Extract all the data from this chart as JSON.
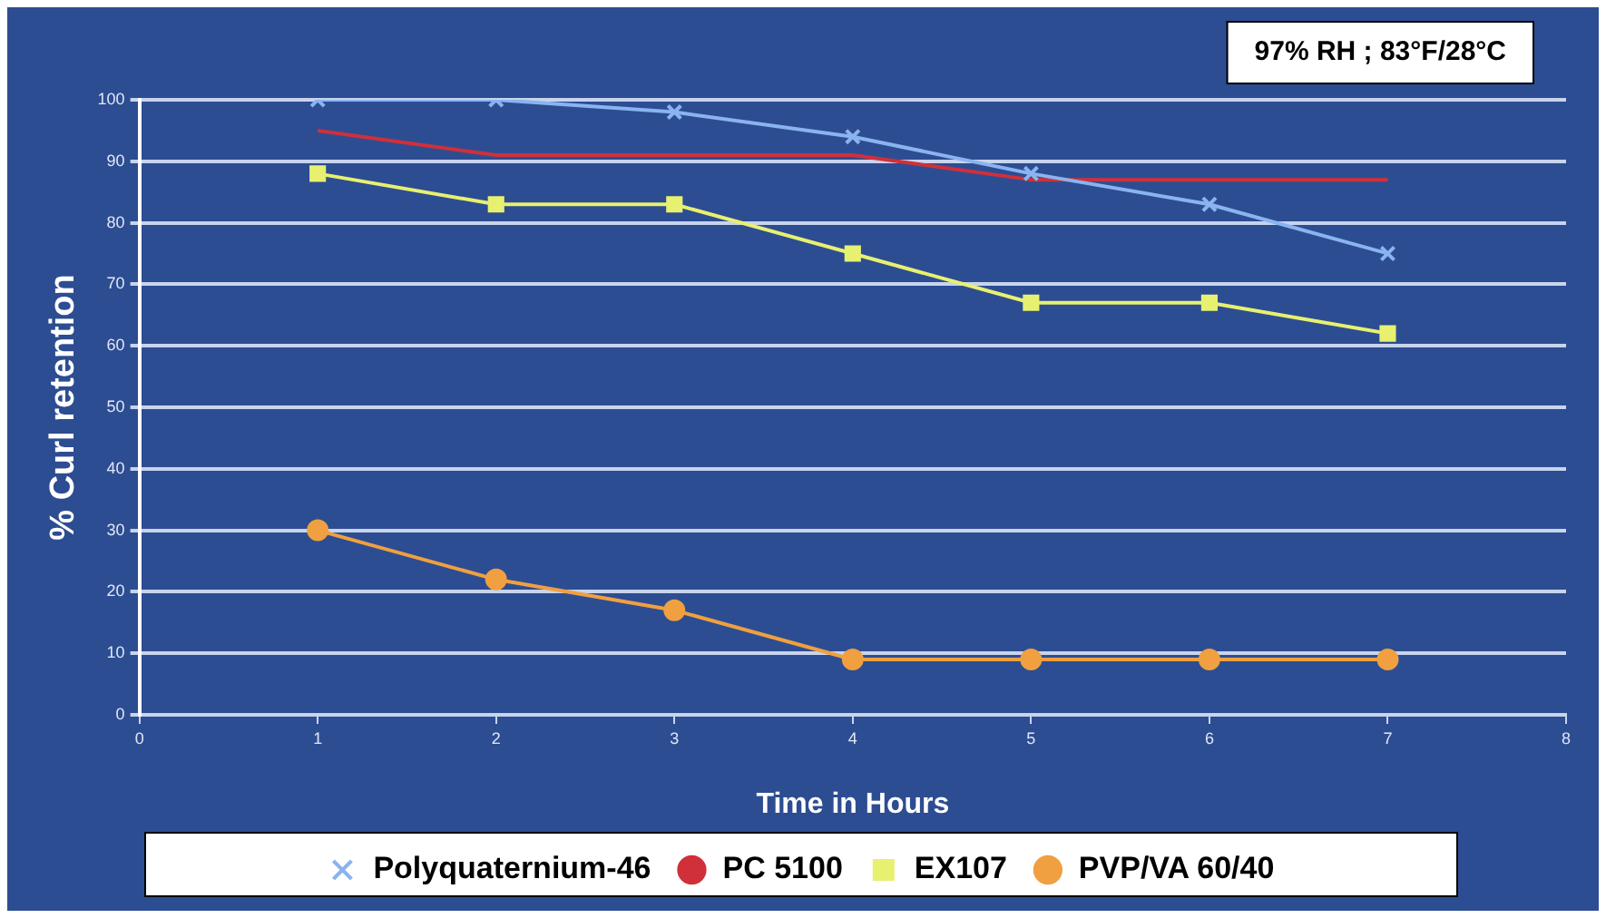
{
  "chart_data": {
    "type": "line",
    "xlabel": "Time in Hours",
    "ylabel": "% Curl retention",
    "annotations": [
      "97% RH ; 83°F/28°C"
    ],
    "x": [
      1,
      2,
      3,
      4,
      5,
      6,
      7
    ],
    "series": [
      {
        "name": "Polyquaternium-46",
        "color": "#8ab4f0",
        "marker": "cross",
        "values": [
          100,
          100,
          98,
          94,
          88,
          83,
          75
        ]
      },
      {
        "name": "PC 5100",
        "color": "#d0303a",
        "marker": "none",
        "values": [
          95,
          91,
          91,
          91,
          87,
          87,
          87
        ]
      },
      {
        "name": "EX107",
        "color": "#e8f070",
        "marker": "square",
        "values": [
          88,
          83,
          83,
          75,
          67,
          67,
          62
        ]
      },
      {
        "name": "PVP/VA 60/40",
        "color": "#f0a040",
        "marker": "circle",
        "values": [
          30,
          22,
          17,
          9,
          9,
          9,
          9
        ]
      }
    ],
    "xlim": [
      0,
      8
    ],
    "xticks": [
      0,
      1,
      2,
      3,
      4,
      5,
      6,
      7,
      8
    ],
    "ylim": [
      0,
      100
    ],
    "yticks": [
      0,
      10,
      20,
      30,
      40,
      50,
      60,
      70,
      80,
      90,
      100
    ],
    "grid": "y",
    "legend": "bottom",
    "line_style": "solid"
  }
}
